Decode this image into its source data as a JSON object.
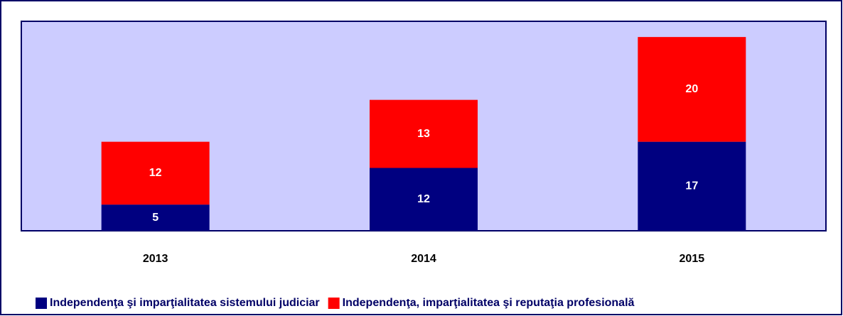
{
  "chart_data": {
    "type": "stacked_bar",
    "categories": [
      "2013",
      "2014",
      "2015"
    ],
    "series": [
      {
        "name": "Independenţa şi imparţialitatea sistemului judiciar",
        "color": "#000080",
        "values": [
          5,
          12,
          17
        ]
      },
      {
        "name": "Independenţa, imparţialitatea şi reputaţia profesională",
        "color": "#ff0000",
        "values": [
          12,
          13,
          20
        ]
      }
    ],
    "ylim": [
      0,
      40
    ],
    "plot_background": "#ccccff"
  }
}
